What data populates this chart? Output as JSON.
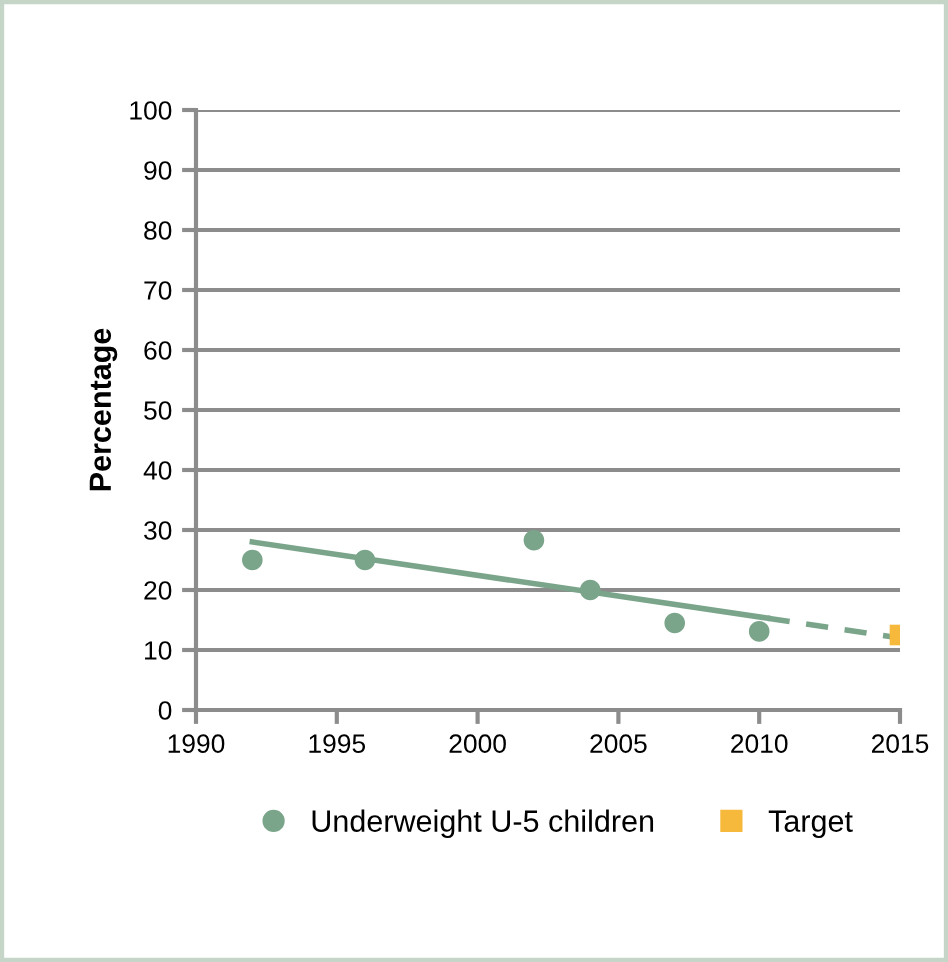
{
  "chart_data": {
    "type": "scatter",
    "ylabel": "Percentage",
    "series": [
      {
        "name": "Underweight U-5 children",
        "marker": "circle",
        "color": "#7aa58a",
        "x": [
          1992,
          1996,
          2002,
          2004,
          2007,
          2010
        ],
        "values": [
          25,
          25,
          28.3,
          20,
          14.5,
          13.1
        ]
      },
      {
        "name": "Target",
        "marker": "square",
        "color": "#f6b93b",
        "x": [
          2015
        ],
        "values": [
          12.5
        ]
      },
      {
        "type": "line",
        "marker": "none",
        "line_style": "solid",
        "color": "#7aa58a",
        "x": [
          1992,
          2010.3
        ],
        "values": [
          28,
          15.3
        ]
      },
      {
        "type": "line",
        "marker": "none",
        "line_style": "dashed",
        "color": "#7aa58a",
        "x": [
          2010.3,
          2015
        ],
        "values": [
          15.3,
          12
        ]
      }
    ],
    "xlim": [
      1990,
      2015
    ],
    "xticks": [
      1990,
      1995,
      2000,
      2005,
      2010,
      2015
    ],
    "ylim": [
      0,
      100
    ],
    "yticks": [
      0,
      10,
      20,
      30,
      40,
      50,
      60,
      70,
      80,
      90,
      100
    ],
    "grid": "y",
    "legend": "bottom"
  }
}
